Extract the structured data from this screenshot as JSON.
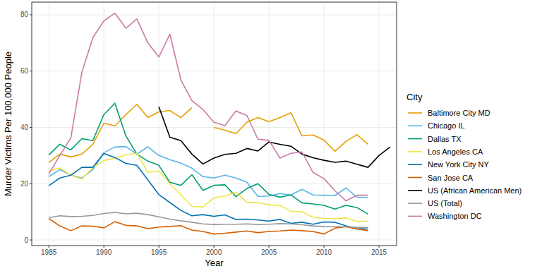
{
  "chart_data": {
    "type": "line",
    "x_label": "Year",
    "y_label": "Murder Victims Per 100,000 People",
    "legend_title": "City",
    "legend": "right",
    "grid": true,
    "xlim": [
      1983.45,
      2016.6
    ],
    "ylim": [
      -2,
      84.5
    ],
    "xticks": [
      1985,
      1990,
      1995,
      2000,
      2005,
      2010,
      2015
    ],
    "yticks": [
      0,
      20,
      40,
      60,
      80
    ],
    "x": [
      1985,
      1986,
      1987,
      1988,
      1989,
      1990,
      1991,
      1992,
      1993,
      1994,
      1995,
      1996,
      1997,
      1998,
      1999,
      2000,
      2001,
      2002,
      2003,
      2004,
      2005,
      2006,
      2007,
      2008,
      2009,
      2010,
      2011,
      2012,
      2013,
      2014,
      2015,
      2016
    ],
    "series": [
      {
        "name": "Baltimore City MD",
        "color": "#E69F00",
        "values": [
          27.5,
          30.5,
          29.5,
          30.5,
          34,
          41.5,
          40.5,
          44.5,
          48.2,
          43.5,
          45.5,
          46,
          43.5,
          47,
          null,
          40,
          39,
          37.8,
          41.8,
          43.5,
          42,
          43.5,
          45.2,
          37,
          37.3,
          35.5,
          31.5,
          35,
          37.4,
          34,
          null,
          null
        ]
      },
      {
        "name": "Chicago IL",
        "color": "#56B4E9",
        "values": [
          22.5,
          25,
          23,
          22,
          25,
          31,
          33,
          33.2,
          30.5,
          33.1,
          30,
          28.5,
          27.3,
          25.5,
          22.5,
          22,
          23,
          22,
          20.5,
          15.5,
          15.6,
          16.5,
          16,
          18,
          16,
          15.9,
          15.8,
          18.5,
          15.2,
          15.1,
          null,
          null
        ]
      },
      {
        "name": "Dallas TX",
        "color": "#009E73",
        "values": [
          30.2,
          34,
          32,
          36,
          35.3,
          44.5,
          48.6,
          37,
          30.5,
          28,
          26.5,
          20.5,
          19.4,
          23.2,
          17.6,
          19.4,
          19.6,
          15.4,
          18.3,
          20,
          16.2,
          15.2,
          16,
          13.2,
          12.8,
          12.3,
          11,
          12.3,
          11.5,
          9.2,
          null,
          null
        ]
      },
      {
        "name": "Los Angeles CA",
        "color": "#F0E442",
        "values": [
          24.5,
          25.6,
          23,
          21.6,
          25.8,
          28.2,
          29,
          30.3,
          30.8,
          24,
          24.5,
          20,
          16,
          11.9,
          11.7,
          15,
          15.6,
          17,
          13.4,
          13.3,
          12.5,
          12.3,
          10.2,
          10,
          8.1,
          7.6,
          7.6,
          7.8,
          6.5,
          6.7,
          null,
          null
        ]
      },
      {
        "name": "New York City NY",
        "color": "#0072B2",
        "values": [
          19.3,
          22,
          23,
          25.8,
          25.8,
          30.7,
          29.3,
          27.2,
          26.5,
          21.3,
          16.1,
          13.3,
          10.5,
          8.6,
          9,
          8.4,
          8.9,
          7.3,
          7.4,
          7.1,
          6.7,
          7.3,
          5.9,
          6.3,
          5.6,
          6.4,
          6.3,
          5,
          4,
          3.9,
          null,
          null
        ]
      },
      {
        "name": "San Jose CA",
        "color": "#D55E00",
        "values": [
          7.6,
          5,
          3.3,
          5,
          4.9,
          4.3,
          6.5,
          5.2,
          5,
          4,
          4.6,
          4.8,
          5.1,
          3.5,
          3,
          2.1,
          2.4,
          2.8,
          3.2,
          2.6,
          3,
          3.2,
          3.5,
          3.3,
          3,
          2.1,
          4.2,
          4.7,
          3.9,
          3.3,
          null,
          null
        ]
      },
      {
        "name": "US (African American Men)",
        "color": "#000000",
        "values": [
          null,
          null,
          null,
          null,
          null,
          null,
          null,
          null,
          null,
          null,
          47.3,
          36.5,
          35.3,
          30.5,
          27,
          29.1,
          30.4,
          30.8,
          32.5,
          31.6,
          34.8,
          34,
          33.3,
          30.5,
          29.2,
          28.3,
          27.6,
          28,
          26.9,
          25.8,
          30,
          33
        ]
      },
      {
        "name": "US (Total)",
        "color": "#999999",
        "values": [
          7.9,
          8.6,
          8.3,
          8.4,
          8.7,
          9.4,
          9.8,
          9.3,
          9.5,
          9,
          8.2,
          7.4,
          6.8,
          6.3,
          5.7,
          5.5,
          5.6,
          5.6,
          5.7,
          5.5,
          5.6,
          5.8,
          5.7,
          5.4,
          5,
          4.8,
          4.7,
          4.7,
          4.5,
          4.4,
          null,
          null
        ]
      },
      {
        "name": "Washington DC",
        "color": "#CC79A7",
        "values": [
          23.5,
          30,
          36.2,
          59.5,
          71.9,
          77.8,
          80.6,
          75.2,
          78.5,
          70,
          65,
          73.1,
          56.9,
          49.5,
          46.4,
          41.8,
          40.6,
          45.8,
          44.2,
          35.8,
          35.4,
          29.1,
          30.8,
          31.3,
          24,
          21.8,
          17.5,
          13.9,
          15.9,
          15.9,
          null,
          null
        ]
      }
    ]
  }
}
